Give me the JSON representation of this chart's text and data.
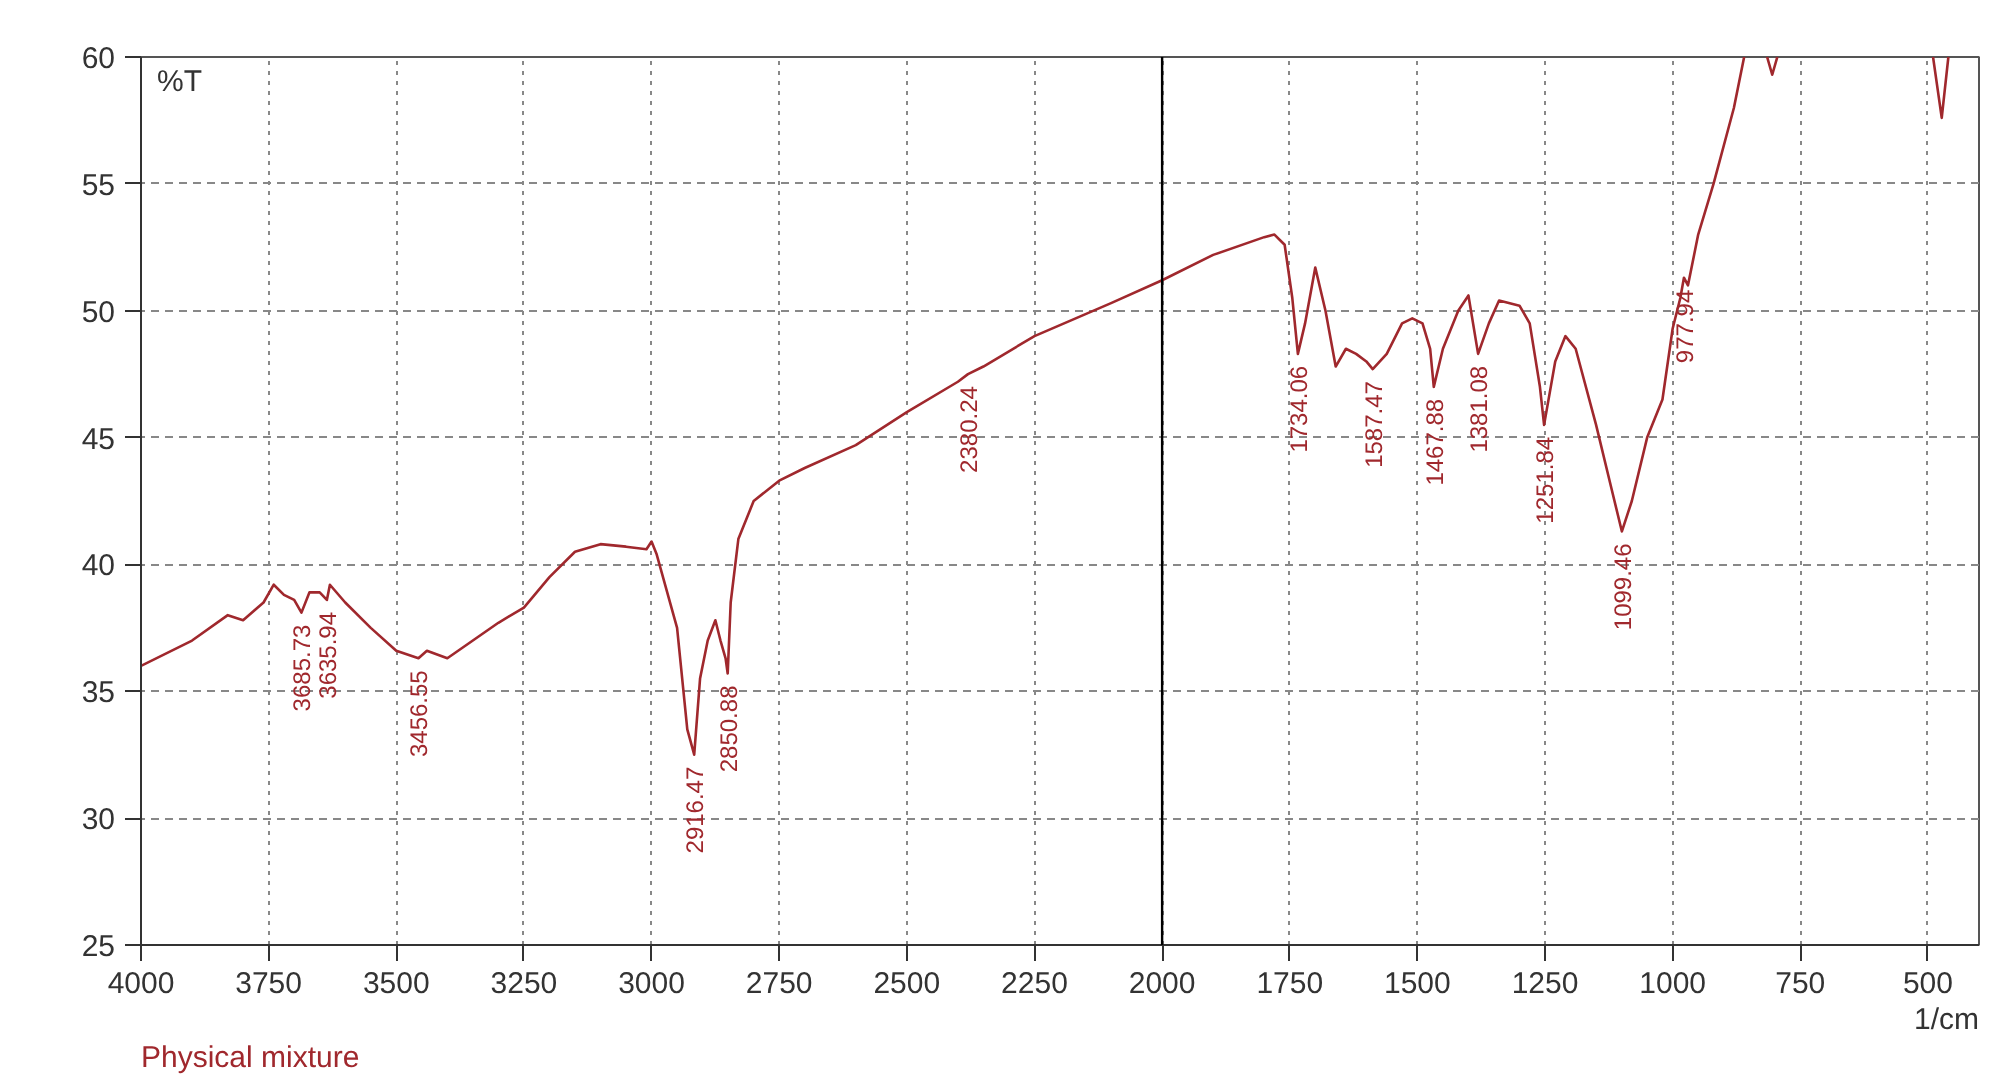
{
  "chart_data": {
    "type": "line",
    "xlabel": "1/cm",
    "ylabel": "%T",
    "xlim": [
      4000,
      400
    ],
    "ylim": [
      25,
      60
    ],
    "xticks": [
      4000,
      3750,
      3500,
      3250,
      3000,
      2750,
      2500,
      2250,
      2000,
      1750,
      1500,
      1250,
      1000,
      750,
      500
    ],
    "yticks": [
      25,
      30,
      35,
      40,
      45,
      50,
      55,
      60
    ],
    "grid": true,
    "line_style": "solid",
    "marker": "none",
    "ref_lines": [
      {
        "axis": "x",
        "value": 2000,
        "label": null,
        "color": "#000000"
      }
    ],
    "series": [
      {
        "color": "#a0282d",
        "x": [
          4000,
          3900,
          3830,
          3800,
          3760,
          3740,
          3720,
          3700,
          3685.73,
          3670,
          3650,
          3635.94,
          3630,
          3600,
          3550,
          3500,
          3456.55,
          3440,
          3400,
          3300,
          3250,
          3200,
          3150,
          3100,
          3050,
          3010,
          3000,
          2990,
          2950,
          2930,
          2916.47,
          2905,
          2890,
          2875,
          2865,
          2855,
          2850.88,
          2845,
          2830,
          2800,
          2750,
          2700,
          2600,
          2500,
          2400,
          2380.24,
          2350,
          2250,
          2100,
          2000,
          1900,
          1800,
          1780,
          1760,
          1745,
          1734.06,
          1720,
          1700,
          1680,
          1660,
          1640,
          1620,
          1600,
          1587.47,
          1560,
          1530,
          1510,
          1490,
          1475,
          1467.88,
          1450,
          1420,
          1400,
          1381.08,
          1360,
          1340,
          1300,
          1280,
          1260,
          1251.84,
          1230,
          1210,
          1190,
          1150,
          1120,
          1099.46,
          1080,
          1050,
          1020,
          1000,
          985,
          977.94,
          970,
          950,
          920,
          880,
          860,
          840,
          815,
          805,
          795,
          780,
          490,
          473,
          460
        ],
        "values": [
          36.0,
          37.0,
          38.0,
          37.8,
          38.5,
          39.2,
          38.8,
          38.6,
          38.1,
          38.9,
          38.9,
          38.6,
          39.2,
          38.5,
          37.5,
          36.6,
          36.3,
          36.6,
          36.3,
          37.7,
          38.3,
          39.5,
          40.5,
          40.8,
          40.7,
          40.6,
          40.9,
          40.4,
          37.5,
          33.5,
          32.5,
          35.5,
          37.0,
          37.8,
          37.0,
          36.3,
          35.7,
          38.5,
          41.0,
          42.5,
          43.3,
          43.8,
          44.7,
          46.0,
          47.2,
          47.5,
          47.8,
          49.0,
          50.3,
          51.2,
          52.2,
          52.9,
          53.0,
          52.6,
          50.5,
          48.3,
          49.5,
          51.7,
          50.0,
          47.8,
          48.5,
          48.3,
          48.0,
          47.7,
          48.3,
          49.5,
          49.7,
          49.5,
          48.5,
          47.0,
          48.5,
          50.0,
          50.6,
          48.3,
          49.5,
          50.4,
          50.2,
          49.5,
          47.0,
          45.5,
          48.0,
          49.0,
          48.5,
          45.5,
          43.0,
          41.3,
          42.5,
          45.0,
          46.5,
          49.3,
          50.5,
          51.3,
          51.0,
          53.0,
          55.0,
          58.0,
          60.0,
          null,
          60.0,
          59.3,
          60.0,
          null,
          60.0,
          57.6,
          60.0
        ]
      }
    ],
    "annotations": [
      {
        "text": "3685.73",
        "x": 3685.73,
        "y": 38.1
      },
      {
        "text": "3635.94",
        "x": 3635.94,
        "y": 38.6
      },
      {
        "text": "3456.55",
        "x": 3456.55,
        "y": 36.3
      },
      {
        "text": "2916.47",
        "x": 2916.47,
        "y": 32.5
      },
      {
        "text": "2850.88",
        "x": 2850.88,
        "y": 35.7
      },
      {
        "text": "2380.24",
        "x": 2380.24,
        "y": 47.5
      },
      {
        "text": "1734.06",
        "x": 1734.06,
        "y": 48.3
      },
      {
        "text": "1587.47",
        "x": 1587.47,
        "y": 47.7
      },
      {
        "text": "1467.88",
        "x": 1467.88,
        "y": 47.0
      },
      {
        "text": "1381.08",
        "x": 1381.08,
        "y": 48.3
      },
      {
        "text": "1251.84",
        "x": 1251.84,
        "y": 45.5
      },
      {
        "text": "1099.46",
        "x": 1099.46,
        "y": 41.3
      },
      {
        "text": "977.94",
        "x": 977.94,
        "y": 51.3
      },
      "Physical mixture"
    ]
  }
}
